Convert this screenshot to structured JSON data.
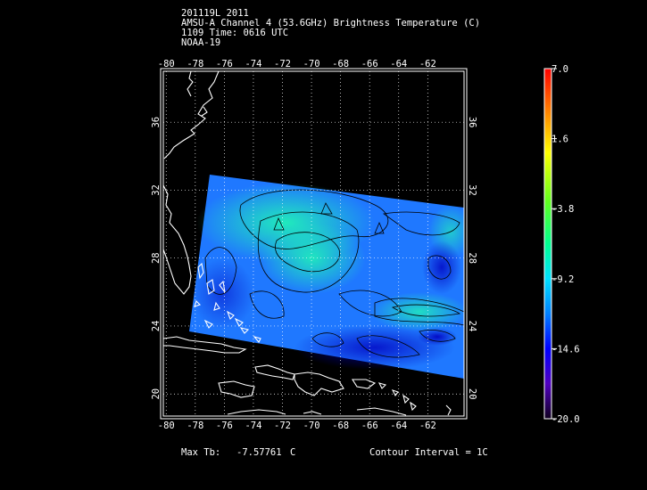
{
  "header": {
    "line1": "201119L 2011",
    "line2": "AMSU-A Channel 4 (53.6GHz) Brightness Temperature (C)",
    "line3": "1109 Time: 0616 UTC",
    "line4": "NOAA-19"
  },
  "map": {
    "lon_ticks": [
      "-80",
      "-78",
      "-76",
      "-74",
      "-72",
      "-70",
      "-68",
      "-66",
      "-64",
      "-62"
    ],
    "lat_ticks": [
      "36",
      "32",
      "28",
      "24",
      "20"
    ],
    "lon_range": [
      -80.2,
      -59.5
    ],
    "lat_range": [
      18.7,
      39.0
    ],
    "grid": true,
    "land_outline_color": "#ffffff"
  },
  "colorbar": {
    "labels": [
      "7.0",
      "1.6",
      "-3.8",
      "-9.2",
      "-14.6",
      "-20.0"
    ],
    "min": -20.0,
    "max": 7.0,
    "colors": [
      "#ff0000",
      "#ff8000",
      "#ffff00",
      "#80ff00",
      "#00ff80",
      "#00ffff",
      "#0080ff",
      "#0000ff",
      "#4000c0",
      "#200040"
    ]
  },
  "footer": {
    "max_label": "Max Tb:",
    "max_value": "-7.57761",
    "max_unit": "C",
    "contour": "Contour Interval = 1C"
  }
}
